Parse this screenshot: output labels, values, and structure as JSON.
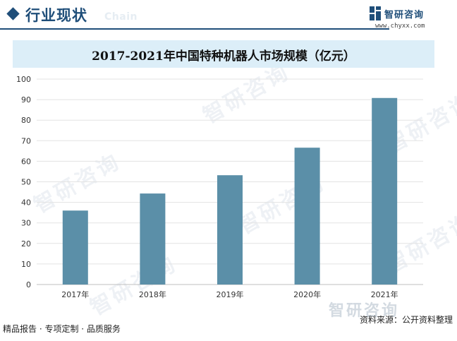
{
  "header": {
    "title": "行业现状",
    "ghost_text": "Chain",
    "accent_color": "#1f4e79"
  },
  "brand": {
    "name": "智研咨询",
    "url": "www.chyxx.com",
    "logo_icon": "zhiyan-logo-icon"
  },
  "watermark": {
    "text": "智研咨询"
  },
  "chart_data": {
    "type": "bar",
    "title": "2017-2021年中国特种机器人市场规模（亿元）",
    "categories": [
      "2017年",
      "2018年",
      "2019年",
      "2020年",
      "2021年"
    ],
    "values": [
      36.0,
      44.3,
      53.2,
      66.6,
      90.8
    ],
    "ylim": [
      0,
      100
    ],
    "yticks": [
      0,
      10,
      20,
      30,
      40,
      50,
      60,
      70,
      80,
      90,
      100
    ],
    "grid": true,
    "bar_color": "#5b8fa8"
  },
  "footer": {
    "left": "精品报告 · 专项定制 · 品质服务",
    "source": "资料来源：公开资料整理"
  }
}
